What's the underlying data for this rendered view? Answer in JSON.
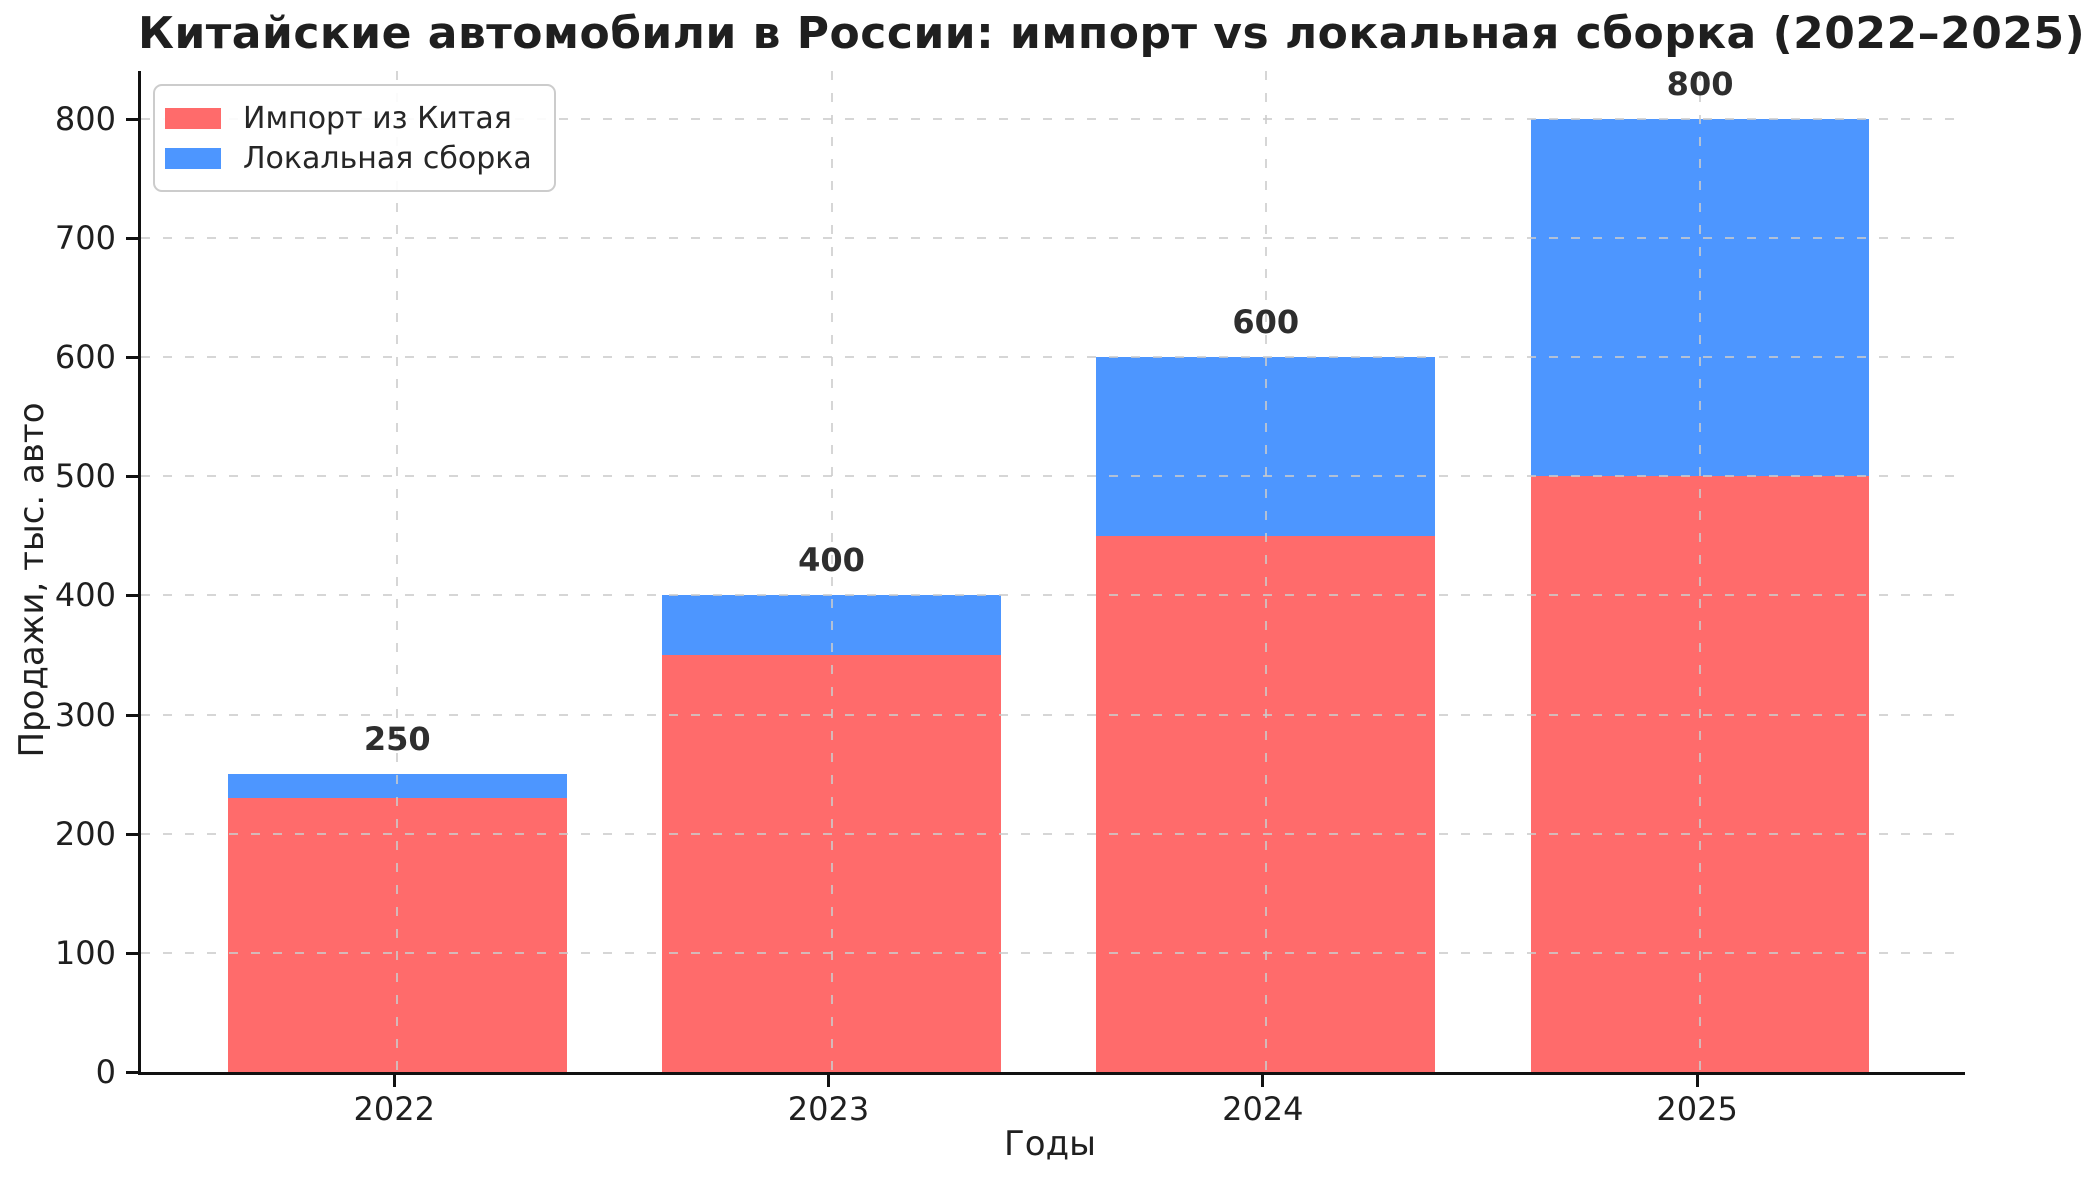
{
  "chart_data": {
    "type": "bar",
    "stacked": true,
    "title": "Китайские автомобили в России: импорт vs локальная сборка (2022–2025)",
    "xlabel": "Годы",
    "ylabel": "Продажи, тыс. авто",
    "categories": [
      "2022",
      "2023",
      "2024",
      "2025"
    ],
    "series": [
      {
        "name": "Импорт из Китая",
        "color": "#FF6B6B",
        "values": [
          230,
          350,
          450,
          500
        ]
      },
      {
        "name": "Локальная сборка",
        "color": "#4D96FF",
        "values": [
          20,
          50,
          150,
          300
        ]
      }
    ],
    "totals": [
      "250",
      "400",
      "600",
      "800"
    ],
    "yticks": [
      0,
      100,
      200,
      300,
      400,
      500,
      600,
      700,
      800
    ],
    "ylim": [
      0,
      840
    ],
    "xlim": [
      -0.59,
      3.61
    ],
    "bar_width": 0.78,
    "grid": "dashed",
    "legend_position": "upper-left",
    "colors": {
      "import": "#FF6B6B",
      "local": "#4D96FF",
      "grid": "#cccccc",
      "axis": "#111111",
      "text": "#262626"
    }
  },
  "legend": {
    "items": [
      {
        "label": "Импорт из Китая",
        "color": "#FF6B6B"
      },
      {
        "label": "Локальная сборка",
        "color": "#4D96FF"
      }
    ]
  }
}
